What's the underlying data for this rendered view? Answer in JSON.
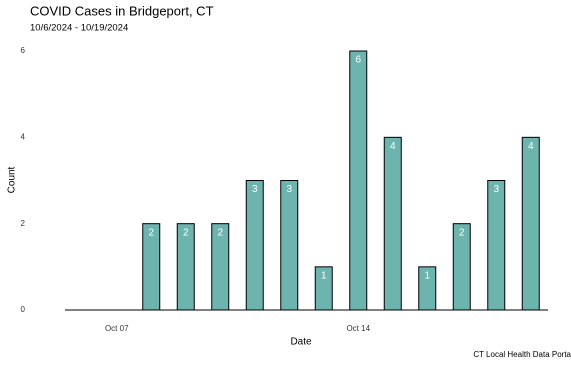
{
  "chart_data": {
    "type": "bar",
    "title": "COVID Cases in Bridgeport, CT",
    "subtitle": "10/6/2024 - 10/19/2024",
    "x_label": "Date",
    "y_label": "Count",
    "caption": "CT Local Health Data Porta",
    "categories": [
      null,
      "Oct 07",
      null,
      null,
      null,
      null,
      null,
      null,
      "Oct 14",
      null,
      null,
      null,
      null,
      null
    ],
    "values": [
      null,
      null,
      2,
      2,
      2,
      3,
      3,
      1,
      6,
      4,
      1,
      2,
      3,
      4
    ],
    "color": "#6db3ae",
    "ylim": [
      0,
      6
    ],
    "yticks": [
      0,
      2,
      4,
      6
    ]
  }
}
